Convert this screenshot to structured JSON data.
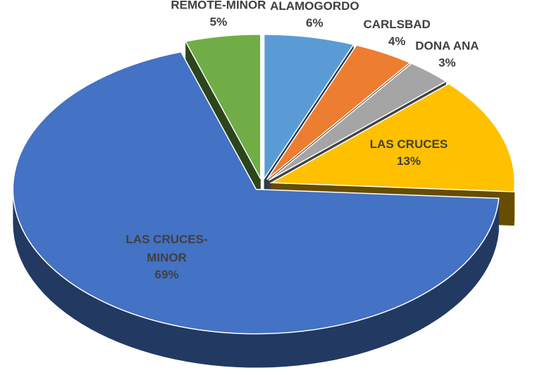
{
  "chart_data": {
    "type": "pie",
    "categories": [
      "ALAMOGORDO",
      "CARLSBAD",
      "DONA ANA",
      "LAS CRUCES",
      "LAS CRUCES-MINOR",
      "REMOTE-MINOR"
    ],
    "values": [
      6,
      4,
      3,
      13,
      69,
      5
    ],
    "value_labels": [
      "6%",
      "4%",
      "3%",
      "13%",
      "69%",
      "5%"
    ],
    "colors": [
      "#5b9bd5",
      "#ed7d31",
      "#a5a5a5",
      "#ffc000",
      "#4472c4",
      "#70ad47"
    ]
  }
}
